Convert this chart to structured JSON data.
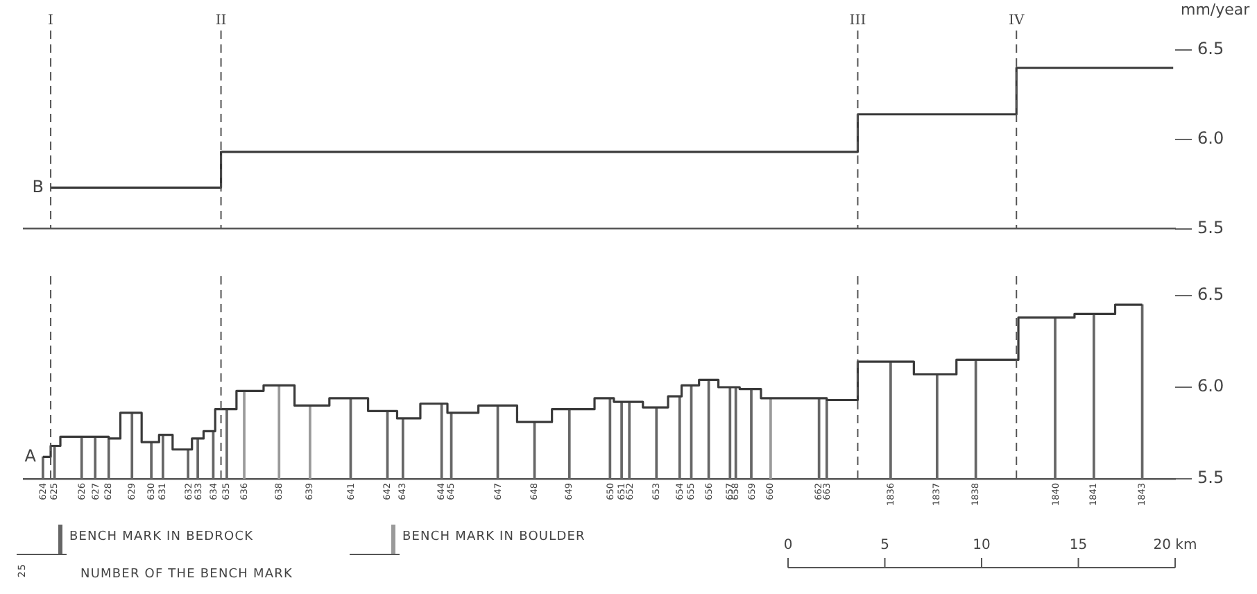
{
  "chart_data": [
    {
      "type": "step",
      "ylabel": "mm/year",
      "xlim": [
        -39.5,
        20.0
      ],
      "ylim": [
        5.5,
        6.5
      ],
      "yticks": [
        {
          "value": 5.5,
          "label": "5.5"
        },
        {
          "value": 6.0,
          "label": "6.0"
        },
        {
          "value": 6.5,
          "label": "6.5"
        }
      ],
      "tick_labels": "y",
      "series": [
        {
          "color": "#3a3a3a",
          "x": [
            -38.1,
            -29.3,
            3.6,
            11.8,
            19.9
          ],
          "values": [
            5.73,
            5.93,
            6.14,
            6.4,
            6.4
          ]
        }
      ],
      "ref_lines": [
        {
          "axis": "x",
          "value": -38.1,
          "label": "I",
          "line_style": "dashed",
          "color": "#555555"
        },
        {
          "axis": "x",
          "value": -29.3,
          "label": "II",
          "line_style": "dashed",
          "color": "#555555"
        },
        {
          "axis": "x",
          "value": 3.6,
          "label": "III",
          "line_style": "dashed",
          "color": "#555555"
        },
        {
          "axis": "x",
          "value": 11.8,
          "label": "IV",
          "line_style": "dashed",
          "color": "#555555"
        }
      ],
      "annotations": [
        {
          "text": "B",
          "x": -38.1,
          "y": 5.73
        }
      ]
    },
    {
      "type": "step",
      "xlim": [
        -39.5,
        20.0
      ],
      "ylim": [
        5.5,
        6.5
      ],
      "xticks": [
        0,
        5,
        10,
        15,
        {
          "value": 20,
          "label": "20 km"
        }
      ],
      "yticks": [
        {
          "value": 5.5,
          "label": "5.5"
        },
        {
          "value": 6.0,
          "label": "6.0"
        },
        {
          "value": 6.5,
          "label": "6.5"
        }
      ],
      "legend": "bottom",
      "series": [
        {
          "color": "#3a3a3a",
          "x": [
            -38.5,
            -38.1,
            -37.6,
            -35.1,
            -34.5,
            -33.4,
            -32.5,
            -31.8,
            -30.8,
            -30.2,
            -29.6,
            -28.5,
            -27.1,
            -25.5,
            -23.7,
            -21.7,
            -20.2,
            -19.0,
            -17.6,
            -16.0,
            -14.0,
            -12.2,
            -10.0,
            -9.0,
            -7.5,
            -6.2,
            -5.5,
            -4.6,
            -3.6,
            -2.5,
            -1.4,
            2.0,
            3.6,
            6.5,
            8.7,
            11.9,
            14.8,
            16.9,
            18.3
          ],
          "values": [
            5.62,
            5.68,
            5.73,
            5.72,
            5.86,
            5.7,
            5.74,
            5.66,
            5.72,
            5.76,
            5.88,
            5.98,
            6.01,
            5.9,
            5.94,
            5.87,
            5.83,
            5.91,
            5.86,
            5.9,
            5.81,
            5.88,
            5.94,
            5.92,
            5.89,
            5.95,
            6.01,
            6.04,
            6.0,
            5.99,
            5.94,
            5.93,
            6.14,
            6.07,
            6.15,
            6.38,
            6.4,
            6.45,
            6.45
          ]
        },
        {
          "type": "bar",
          "name": "BENCH MARK IN BEDROCK",
          "color": "#666666",
          "x": [
            -38.5,
            -37.9,
            -36.5,
            -35.8,
            -35.1,
            -33.9,
            -32.9,
            -32.3,
            -31.0,
            -30.5,
            -29.7,
            -29.0,
            -22.6,
            -20.7,
            -19.9,
            -17.9,
            -17.4,
            -15.0,
            -13.1,
            -11.3,
            -9.2,
            -8.6,
            -8.2,
            -6.8,
            -5.6,
            -5.0,
            -4.1,
            -3.0,
            -2.7,
            -1.9,
            1.6,
            2.0,
            5.3,
            7.7,
            9.7,
            13.8,
            15.8,
            18.3
          ],
          "values": [
            5.62,
            5.68,
            5.73,
            5.73,
            5.72,
            5.86,
            5.7,
            5.74,
            5.66,
            5.72,
            5.76,
            5.88,
            5.94,
            5.87,
            5.83,
            5.91,
            5.86,
            5.9,
            5.81,
            5.88,
            5.94,
            5.92,
            5.92,
            5.89,
            5.95,
            6.01,
            6.04,
            6.0,
            6.0,
            5.99,
            5.94,
            5.93,
            6.14,
            6.07,
            6.15,
            6.38,
            6.4,
            6.45
          ]
        },
        {
          "type": "bar",
          "name": "BENCH MARK IN BOULDER",
          "color": "#9a9a9a",
          "x": [
            -28.1,
            -26.3,
            -24.7,
            -0.9
          ],
          "values": [
            5.98,
            6.01,
            5.9,
            5.94
          ]
        }
      ],
      "ref_lines": [
        {
          "axis": "x",
          "value": -38.1,
          "line_style": "dashed",
          "color": "#555555"
        },
        {
          "axis": "x",
          "value": -29.3,
          "line_style": "dashed",
          "color": "#555555"
        },
        {
          "axis": "x",
          "value": 3.6,
          "line_style": "dashed",
          "color": "#555555"
        },
        {
          "axis": "x",
          "value": 11.8,
          "line_style": "dashed",
          "color": "#555555"
        }
      ],
      "annotations": [
        {
          "text": "A",
          "x": -38.5,
          "y": 5.62
        },
        {
          "text": "624",
          "x": -38.5
        },
        {
          "text": "625",
          "x": -37.9
        },
        {
          "text": "626",
          "x": -36.5
        },
        {
          "text": "627",
          "x": -35.8
        },
        {
          "text": "628",
          "x": -35.1
        },
        {
          "text": "629",
          "x": -33.9
        },
        {
          "text": "630",
          "x": -32.9
        },
        {
          "text": "631",
          "x": -32.3
        },
        {
          "text": "632",
          "x": -31.0
        },
        {
          "text": "633",
          "x": -30.5
        },
        {
          "text": "634",
          "x": -29.7
        },
        {
          "text": "635",
          "x": -29.0
        },
        {
          "text": "636",
          "x": -28.1
        },
        {
          "text": "638",
          "x": -26.3
        },
        {
          "text": "639",
          "x": -24.7
        },
        {
          "text": "641",
          "x": -22.6
        },
        {
          "text": "642",
          "x": -20.7
        },
        {
          "text": "643",
          "x": -19.9
        },
        {
          "text": "644",
          "x": -17.9
        },
        {
          "text": "645",
          "x": -17.4
        },
        {
          "text": "647",
          "x": -15.0
        },
        {
          "text": "648",
          "x": -13.1
        },
        {
          "text": "649",
          "x": -11.3
        },
        {
          "text": "650",
          "x": -9.2
        },
        {
          "text": "651",
          "x": -8.6
        },
        {
          "text": "652",
          "x": -8.2
        },
        {
          "text": "653",
          "x": -6.8
        },
        {
          "text": "654",
          "x": -5.6
        },
        {
          "text": "655",
          "x": -5.0
        },
        {
          "text": "656",
          "x": -4.1
        },
        {
          "text": "657",
          "x": -3.0
        },
        {
          "text": "658",
          "x": -2.7
        },
        {
          "text": "659",
          "x": -1.9
        },
        {
          "text": "660",
          "x": -0.9
        },
        {
          "text": "662",
          "x": 1.6
        },
        {
          "text": "663",
          "x": 2.0
        },
        {
          "text": "1836",
          "x": 5.3
        },
        {
          "text": "1837",
          "x": 7.7
        },
        {
          "text": "1838",
          "x": 9.7
        },
        {
          "text": "1840",
          "x": 13.8
        },
        {
          "text": "1841",
          "x": 15.8
        },
        {
          "text": "1843",
          "x": 18.3
        },
        "25",
        "NUMBER OF THE BENCH MARK"
      ]
    }
  ]
}
